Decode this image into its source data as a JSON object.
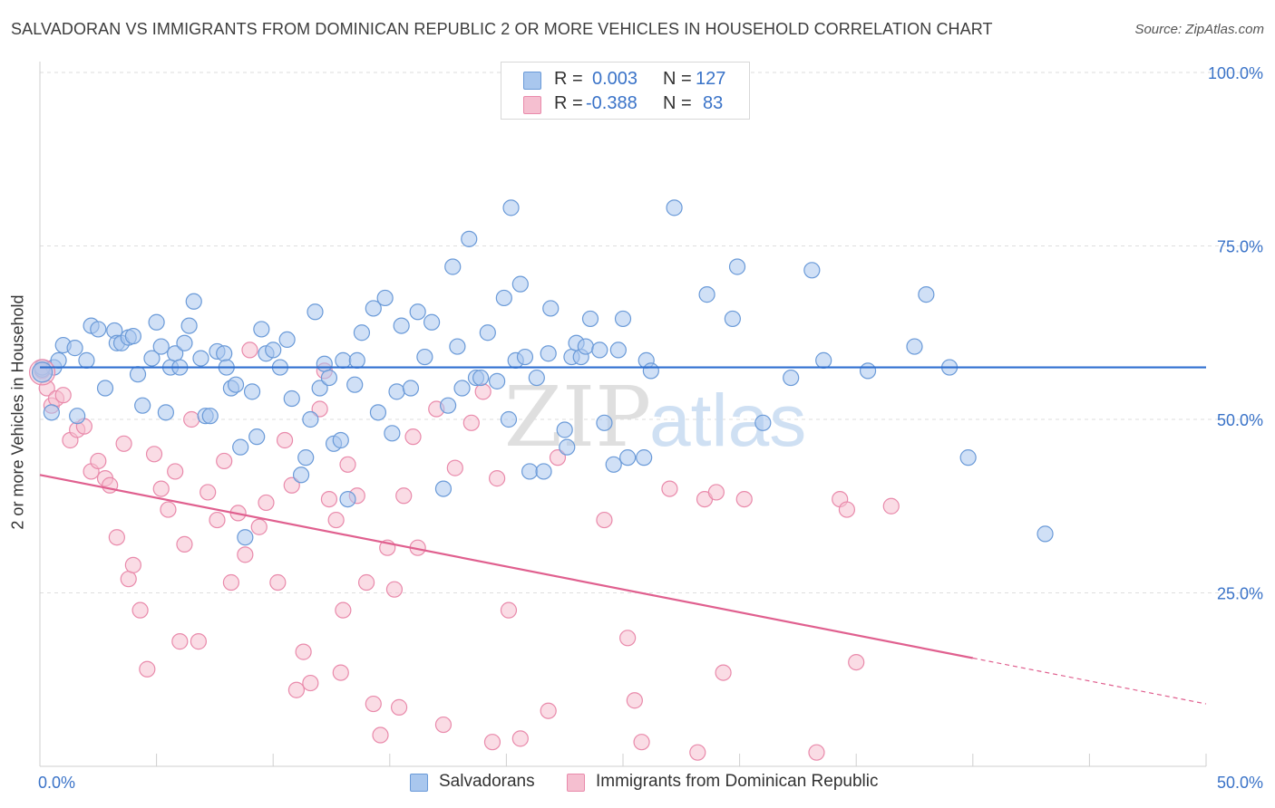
{
  "title": "SALVADORAN VS IMMIGRANTS FROM DOMINICAN REPUBLIC 2 OR MORE VEHICLES IN HOUSEHOLD CORRELATION CHART",
  "source": "Source: ZipAtlas.com",
  "watermark": {
    "zip": "ZIP",
    "atlas": "atlas"
  },
  "legend": {
    "rows": [
      {
        "r_label": "R =",
        "r_value": "0.003",
        "n_label": "N =",
        "n_value": "127"
      },
      {
        "r_label": "R =",
        "r_value": "-0.388",
        "n_label": "N =",
        "n_value": "83"
      }
    ]
  },
  "bottom_legend": [
    {
      "label": "Salvadorans"
    },
    {
      "label": "Immigrants from Dominican Republic"
    }
  ],
  "chart_data": {
    "type": "scatter",
    "ylabel": "2 or more Vehicles in Household",
    "xlim": [
      0,
      50
    ],
    "ylim": [
      0,
      100
    ],
    "x_tick_labels": [
      "0.0%",
      "50.0%"
    ],
    "y_tick_labels": [
      "25.0%",
      "50.0%",
      "75.0%",
      "100.0%"
    ],
    "y_ticks": [
      25,
      50,
      75,
      100
    ],
    "grid": true,
    "colors": {
      "blue_fill": "#a9c7ee",
      "blue_stroke": "#6a9ad8",
      "blue_line": "#2f6fd0",
      "pink_fill": "#f5bfd0",
      "pink_stroke": "#e98aab",
      "pink_line": "#e0608f",
      "tick_label": "#3a73c8"
    },
    "series": [
      {
        "name": "Salvadorans",
        "trend": {
          "x": [
            0,
            50
          ],
          "y": [
            57.5,
            57.5
          ],
          "dashed_from_x": null
        },
        "points": [
          [
            0.1,
            57.2
          ],
          [
            0.5,
            51.0
          ],
          [
            0.6,
            57.5
          ],
          [
            0.8,
            58.5
          ],
          [
            1.0,
            60.7
          ],
          [
            1.5,
            60.3
          ],
          [
            1.6,
            50.5
          ],
          [
            2.0,
            58.5
          ],
          [
            2.2,
            63.5
          ],
          [
            2.5,
            63.0
          ],
          [
            2.8,
            54.5
          ],
          [
            3.2,
            62.8
          ],
          [
            3.3,
            61.0
          ],
          [
            3.5,
            61.0
          ],
          [
            3.8,
            61.8
          ],
          [
            4.0,
            62.0
          ],
          [
            4.2,
            56.5
          ],
          [
            4.4,
            52.0
          ],
          [
            4.8,
            58.8
          ],
          [
            5.0,
            64.0
          ],
          [
            5.2,
            60.5
          ],
          [
            5.4,
            51.0
          ],
          [
            5.6,
            57.5
          ],
          [
            5.8,
            59.5
          ],
          [
            6.0,
            57.5
          ],
          [
            6.2,
            61.0
          ],
          [
            6.4,
            63.5
          ],
          [
            6.6,
            67.0
          ],
          [
            6.9,
            58.8
          ],
          [
            7.1,
            50.5
          ],
          [
            7.3,
            50.5
          ],
          [
            7.6,
            59.8
          ],
          [
            7.9,
            59.5
          ],
          [
            8.0,
            57.5
          ],
          [
            8.2,
            54.5
          ],
          [
            8.4,
            55.0
          ],
          [
            8.6,
            46.0
          ],
          [
            8.8,
            33.0
          ],
          [
            9.1,
            54.0
          ],
          [
            9.3,
            47.5
          ],
          [
            9.5,
            63.0
          ],
          [
            9.7,
            59.5
          ],
          [
            10.0,
            60.0
          ],
          [
            10.3,
            57.5
          ],
          [
            10.6,
            61.5
          ],
          [
            10.8,
            53.0
          ],
          [
            11.2,
            42.0
          ],
          [
            11.4,
            44.5
          ],
          [
            11.6,
            50.0
          ],
          [
            11.8,
            65.5
          ],
          [
            12.0,
            54.5
          ],
          [
            12.2,
            58.0
          ],
          [
            12.4,
            56.0
          ],
          [
            12.6,
            46.5
          ],
          [
            12.9,
            47.0
          ],
          [
            13.0,
            58.5
          ],
          [
            13.2,
            38.5
          ],
          [
            13.5,
            55.0
          ],
          [
            13.6,
            58.5
          ],
          [
            13.8,
            62.5
          ],
          [
            14.3,
            66.0
          ],
          [
            14.5,
            51.0
          ],
          [
            14.8,
            67.5
          ],
          [
            15.1,
            48.0
          ],
          [
            15.3,
            54.0
          ],
          [
            15.5,
            63.5
          ],
          [
            15.9,
            54.5
          ],
          [
            16.2,
            65.5
          ],
          [
            16.5,
            59.0
          ],
          [
            16.8,
            64.0
          ],
          [
            17.3,
            40.0
          ],
          [
            17.5,
            52.0
          ],
          [
            17.7,
            72.0
          ],
          [
            17.9,
            60.5
          ],
          [
            18.1,
            54.5
          ],
          [
            18.4,
            76.0
          ],
          [
            18.7,
            56.0
          ],
          [
            18.9,
            56.0
          ],
          [
            19.2,
            62.5
          ],
          [
            19.6,
            55.5
          ],
          [
            19.9,
            67.5
          ],
          [
            20.1,
            50.0
          ],
          [
            20.2,
            80.5
          ],
          [
            20.4,
            58.5
          ],
          [
            20.6,
            69.5
          ],
          [
            20.8,
            59.0
          ],
          [
            21.0,
            42.5
          ],
          [
            21.3,
            56.0
          ],
          [
            21.6,
            42.5
          ],
          [
            21.8,
            59.5
          ],
          [
            21.9,
            66.0
          ],
          [
            22.5,
            48.5
          ],
          [
            22.6,
            46.0
          ],
          [
            22.8,
            59.0
          ],
          [
            23.0,
            61.0
          ],
          [
            23.2,
            59.0
          ],
          [
            23.4,
            60.5
          ],
          [
            23.6,
            64.5
          ],
          [
            24.0,
            60.0
          ],
          [
            24.2,
            49.5
          ],
          [
            24.6,
            43.5
          ],
          [
            24.8,
            60.0
          ],
          [
            25.0,
            64.5
          ],
          [
            25.2,
            44.5
          ],
          [
            25.9,
            44.5
          ],
          [
            26.0,
            58.5
          ],
          [
            26.2,
            57.0
          ],
          [
            27.2,
            80.5
          ],
          [
            28.6,
            68.0
          ],
          [
            29.7,
            64.5
          ],
          [
            29.9,
            72.0
          ],
          [
            31.0,
            49.5
          ],
          [
            32.2,
            56.0
          ],
          [
            33.1,
            71.5
          ],
          [
            33.6,
            58.5
          ],
          [
            35.5,
            57.0
          ],
          [
            37.5,
            60.5
          ],
          [
            38.0,
            68.0
          ],
          [
            39.0,
            57.5
          ],
          [
            39.8,
            44.5
          ],
          [
            43.1,
            33.5
          ],
          [
            0.1,
            57.5
          ]
        ]
      },
      {
        "name": "Immigrants from Dominican Republic",
        "trend": {
          "x": [
            0,
            50
          ],
          "y": [
            42.0,
            9.0
          ],
          "dashed_from_x": 40.0
        },
        "points": [
          [
            0.1,
            57.0
          ],
          [
            0.3,
            54.5
          ],
          [
            0.5,
            52.0
          ],
          [
            0.7,
            53.0
          ],
          [
            1.0,
            53.5
          ],
          [
            1.3,
            47.0
          ],
          [
            1.6,
            48.5
          ],
          [
            1.9,
            49.0
          ],
          [
            2.2,
            42.5
          ],
          [
            2.5,
            44.0
          ],
          [
            2.8,
            41.5
          ],
          [
            3.0,
            40.5
          ],
          [
            3.3,
            33.0
          ],
          [
            3.6,
            46.5
          ],
          [
            3.8,
            27.0
          ],
          [
            4.0,
            29.0
          ],
          [
            4.3,
            22.5
          ],
          [
            4.6,
            14.0
          ],
          [
            4.9,
            45.0
          ],
          [
            5.2,
            40.0
          ],
          [
            5.5,
            37.0
          ],
          [
            5.8,
            42.5
          ],
          [
            6.0,
            18.0
          ],
          [
            6.2,
            32.0
          ],
          [
            6.5,
            50.0
          ],
          [
            6.8,
            18.0
          ],
          [
            7.2,
            39.5
          ],
          [
            7.6,
            35.5
          ],
          [
            7.9,
            44.0
          ],
          [
            8.2,
            26.5
          ],
          [
            8.5,
            36.5
          ],
          [
            8.8,
            30.5
          ],
          [
            9.0,
            60.0
          ],
          [
            9.4,
            34.5
          ],
          [
            9.7,
            38.0
          ],
          [
            10.2,
            26.5
          ],
          [
            10.5,
            47.0
          ],
          [
            10.8,
            40.5
          ],
          [
            11.0,
            11.0
          ],
          [
            11.3,
            16.5
          ],
          [
            11.6,
            12.0
          ],
          [
            12.0,
            51.5
          ],
          [
            12.2,
            57.0
          ],
          [
            12.4,
            38.5
          ],
          [
            12.7,
            35.5
          ],
          [
            12.9,
            13.5
          ],
          [
            13.0,
            22.5
          ],
          [
            13.2,
            43.5
          ],
          [
            13.6,
            39.0
          ],
          [
            14.0,
            26.5
          ],
          [
            14.3,
            9.0
          ],
          [
            14.6,
            4.5
          ],
          [
            14.9,
            31.5
          ],
          [
            15.2,
            25.5
          ],
          [
            15.4,
            8.5
          ],
          [
            15.6,
            39.0
          ],
          [
            16.0,
            47.5
          ],
          [
            16.2,
            31.5
          ],
          [
            17.0,
            51.5
          ],
          [
            17.3,
            6.0
          ],
          [
            17.8,
            43.0
          ],
          [
            18.5,
            49.5
          ],
          [
            19.0,
            54.0
          ],
          [
            19.4,
            3.5
          ],
          [
            19.6,
            41.5
          ],
          [
            20.1,
            22.5
          ],
          [
            20.6,
            4.0
          ],
          [
            21.8,
            8.0
          ],
          [
            22.2,
            44.5
          ],
          [
            24.2,
            35.5
          ],
          [
            25.2,
            18.5
          ],
          [
            25.5,
            9.5
          ],
          [
            25.8,
            3.5
          ],
          [
            27.0,
            40.0
          ],
          [
            28.2,
            2.0
          ],
          [
            28.5,
            38.5
          ],
          [
            29.0,
            39.5
          ],
          [
            29.3,
            13.5
          ],
          [
            30.2,
            38.5
          ],
          [
            33.3,
            2.0
          ],
          [
            34.3,
            38.5
          ],
          [
            34.6,
            37.0
          ],
          [
            35.0,
            15.0
          ],
          [
            36.5,
            37.5
          ]
        ]
      }
    ]
  }
}
